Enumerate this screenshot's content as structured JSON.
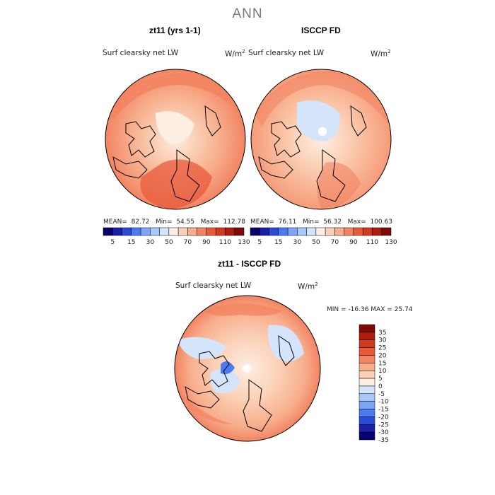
{
  "title": "ANN",
  "panels": [
    {
      "title": "zt11 (yrs 1-1)",
      "variable": "Surf clearsky net LW",
      "unit_base": "W/m",
      "unit_exp": "2",
      "stats": {
        "mean_label": "MEAN=",
        "mean": "82.72",
        "min_label": "Min=",
        "min": "54.55",
        "max_label": "Max=",
        "max": "112.78"
      }
    },
    {
      "title": "ISCCP FD",
      "variable": "Surf clearsky net LW",
      "unit_base": "W/m",
      "unit_exp": "2",
      "stats": {
        "mean_label": "MEAN=",
        "mean": "76.11",
        "min_label": "Min=",
        "min": "56.32",
        "max_label": "Max=",
        "max": "100.63"
      }
    },
    {
      "title": "zt11 - ISCCP FD",
      "variable": "Surf clearsky net LW",
      "unit_base": "W/m",
      "unit_exp": "2",
      "stats_text": "MIN = -16.36 MAX =  25.74"
    }
  ],
  "colorbar_top": {
    "labels": [
      "5",
      "15",
      "30",
      "50",
      "70",
      "90",
      "110",
      "130"
    ],
    "colors": [
      "#08006e",
      "#1a1fa8",
      "#2a4bd8",
      "#4a7bf0",
      "#7aa6f5",
      "#a9c8fa",
      "#d4e5fb",
      "#fdeee3",
      "#fbd0b6",
      "#f7ad8b",
      "#f28462",
      "#e8593c",
      "#d23a1d",
      "#b01d0b",
      "#7d0a04"
    ]
  },
  "colorbar_diff": {
    "labels": [
      "35",
      "30",
      "25",
      "20",
      "15",
      "10",
      "5",
      "0",
      "-5",
      "-10",
      "-15",
      "-20",
      "-25",
      "-30",
      "-35"
    ],
    "colors": [
      "#7d0a04",
      "#b01d0b",
      "#d23a1d",
      "#e8593c",
      "#f28462",
      "#f7ad8b",
      "#fbd0b6",
      "#fdeee3",
      "#d4e5fb",
      "#a9c8fa",
      "#7aa6f5",
      "#4a7bf0",
      "#2a4bd8",
      "#1a1fa8",
      "#08006e"
    ]
  }
}
